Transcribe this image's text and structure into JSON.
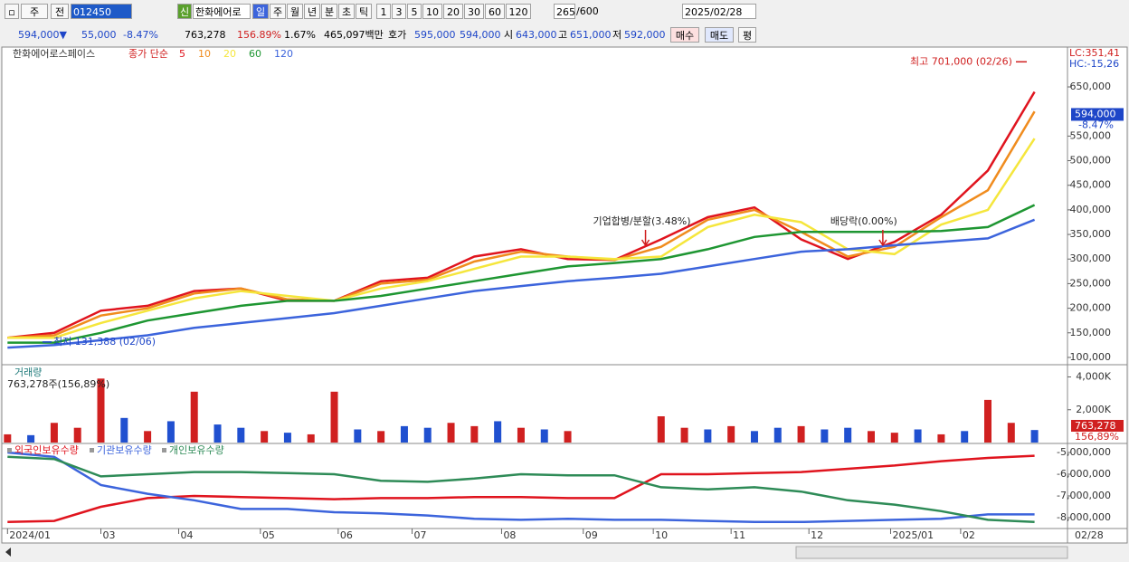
{
  "toolbar": {
    "period_unit": "주",
    "mode": "전",
    "code": "012450",
    "badge": "신",
    "name": "한화에어로",
    "intervals": [
      "일",
      "주",
      "월",
      "년",
      "분",
      "초",
      "틱"
    ],
    "minutes": [
      "1",
      "3",
      "5",
      "10",
      "20",
      "30",
      "60",
      "120"
    ],
    "count": "265",
    "max_count": "/600",
    "date": "2025/02/28"
  },
  "quote": {
    "price": "594,000▼",
    "change": "55,000",
    "change_pct": "-8.47%",
    "volume": "763,278",
    "volume_ratio": "156.89%",
    "turnover": "1.67%",
    "amount": "465,097백만",
    "ask_label": "호가",
    "ask": "595,000",
    "bid": "594,000",
    "open_label": "시",
    "open": "643,000",
    "high_label": "고",
    "high": "651,000",
    "low_label": "저",
    "low": "592,000",
    "buy": "매수",
    "sell": "매도",
    "avg": "평"
  },
  "chart_data": [
    {
      "type": "line",
      "name": "한화에어로스페이스",
      "indicator": "종가 단순",
      "x": [
        0,
        12,
        24,
        36,
        48,
        60,
        72,
        84,
        96,
        108,
        120,
        132,
        144,
        156,
        168,
        180,
        192,
        204,
        216,
        228,
        240,
        252,
        264
      ],
      "xlim": [
        -1,
        272
      ],
      "ylim": [
        87000,
        731000
      ],
      "yticks": [
        {
          "value": 100000,
          "label": "100,000"
        },
        {
          "value": 150000,
          "label": "150,000"
        },
        {
          "value": 200000,
          "label": "200,000"
        },
        {
          "value": 250000,
          "label": "250,000"
        },
        {
          "value": 300000,
          "label": "300,000"
        },
        {
          "value": 350000,
          "label": "350,000"
        },
        {
          "value": 400000,
          "label": "400,000"
        },
        {
          "value": 450000,
          "label": "450,000"
        },
        {
          "value": 500000,
          "label": "500,000"
        },
        {
          "value": 550000,
          "label": "550,000"
        },
        {
          "value": 650000,
          "label": "650,000"
        }
      ],
      "series": [
        {
          "name": "5",
          "color": "#e0141e",
          "values": [
            140000,
            150000,
            195000,
            205000,
            235000,
            240000,
            215000,
            215000,
            255000,
            262000,
            305000,
            320000,
            300000,
            298000,
            340000,
            385000,
            405000,
            340000,
            300000,
            335000,
            390000,
            480000,
            640000
          ]
        },
        {
          "name": "10",
          "color": "#f08c1e",
          "values": [
            140000,
            145000,
            185000,
            200000,
            230000,
            240000,
            218000,
            215000,
            250000,
            258000,
            295000,
            315000,
            305000,
            298000,
            325000,
            380000,
            400000,
            355000,
            305000,
            325000,
            385000,
            440000,
            600000
          ]
        },
        {
          "name": "20",
          "color": "#f5e63c",
          "values": [
            140000,
            140000,
            170000,
            195000,
            220000,
            235000,
            225000,
            215000,
            240000,
            255000,
            280000,
            305000,
            305000,
            300000,
            305000,
            365000,
            390000,
            375000,
            320000,
            310000,
            370000,
            400000,
            545000
          ]
        },
        {
          "name": "60",
          "color": "#1e9632",
          "values": [
            130000,
            130000,
            150000,
            175000,
            190000,
            205000,
            215000,
            215000,
            225000,
            240000,
            255000,
            270000,
            285000,
            292000,
            300000,
            320000,
            345000,
            355000,
            355000,
            355000,
            357000,
            365000,
            410000
          ]
        },
        {
          "name": "120",
          "color": "#3c64dc",
          "values": [
            120000,
            125000,
            135000,
            145000,
            160000,
            170000,
            180000,
            190000,
            205000,
            220000,
            235000,
            245000,
            255000,
            262000,
            270000,
            285000,
            300000,
            315000,
            320000,
            328000,
            335000,
            342000,
            380000
          ]
        }
      ],
      "last_value": 594000,
      "last_label": "594,000",
      "last_change": "-8.47%",
      "lc": "LC:351,41",
      "hc": "HC:-15,26",
      "annotations": [
        {
          "text": "최고 701,000 (02/26)",
          "x": 262,
          "value": 701000
        },
        {
          "text": "최저 131,388 (02/06)",
          "x": 9,
          "value": 131388
        }
      ],
      "events": [
        {
          "text": "기업합병/분할(3.48%)",
          "x": 164
        },
        {
          "text": "배당락(0.00%)",
          "x": 225
        }
      ]
    },
    {
      "type": "bar",
      "title": "거래량",
      "subtitle": "763,278주(156,89%)",
      "x": [
        0,
        6,
        12,
        18,
        24,
        30,
        36,
        42,
        48,
        54,
        60,
        66,
        72,
        78,
        84,
        90,
        96,
        102,
        108,
        114,
        120,
        126,
        132,
        138,
        144,
        150,
        156,
        162,
        168,
        174,
        180,
        186,
        192,
        198,
        204,
        210,
        216,
        222,
        228,
        234,
        240,
        246,
        252,
        258,
        264
      ],
      "xlim": [
        -1,
        272
      ],
      "ylim": [
        0,
        4690
      ],
      "yticks": [
        {
          "value": 2000,
          "label": "2,000K"
        },
        {
          "value": 4000,
          "label": "4,000K"
        }
      ],
      "values": [
        500,
        450,
        1200,
        900,
        3900,
        1500,
        700,
        1300,
        3100,
        1100,
        900,
        700,
        600,
        500,
        3100,
        800,
        700,
        1000,
        900,
        1200,
        1000,
        1300,
        900,
        800,
        700,
        null,
        null,
        null,
        1600,
        900,
        800,
        1000,
        700,
        900,
        1000,
        800,
        900,
        700,
        600,
        800,
        500,
        700,
        2600,
        1200,
        763.278
      ],
      "colors": [
        "#d02020",
        "#2050d0",
        "#d02020",
        "#d02020",
        "#d02020",
        "#2050d0",
        "#d02020",
        "#2050d0",
        "#d02020",
        "#2050d0",
        "#2050d0",
        "#d02020",
        "#2050d0",
        "#d02020",
        "#d02020",
        "#2050d0",
        "#d02020",
        "#2050d0",
        "#2050d0",
        "#d02020",
        "#d02020",
        "#2050d0",
        "#d02020",
        "#2050d0",
        "#d02020",
        "#d02020",
        "#d02020",
        "#d02020",
        "#d02020",
        "#d02020",
        "#2050d0",
        "#d02020",
        "#2050d0",
        "#2050d0",
        "#d02020",
        "#2050d0",
        "#2050d0",
        "#d02020",
        "#d02020",
        "#2050d0",
        "#d02020",
        "#2050d0",
        "#d02020",
        "#d02020",
        "#2050d0"
      ],
      "last_label": "763,278",
      "last_pct": "156,89%"
    },
    {
      "type": "line",
      "x": [
        0,
        12,
        24,
        36,
        48,
        60,
        72,
        84,
        96,
        108,
        120,
        132,
        144,
        156,
        168,
        180,
        192,
        204,
        216,
        228,
        240,
        252,
        264
      ],
      "xlim": [
        -1,
        272
      ],
      "ylim": [
        -8500000,
        -4625000
      ],
      "yticks": [
        {
          "value": -5000000,
          "label": "-5,000,000"
        },
        {
          "value": -6000000,
          "label": "-6,000,000"
        },
        {
          "value": -7000000,
          "label": "-7,000,000"
        },
        {
          "value": -8000000,
          "label": "-8,000,000"
        }
      ],
      "series": [
        {
          "name": "외국인보유수량",
          "color": "#e0141e",
          "values": [
            -8200000,
            -8150000,
            -7500000,
            -7100000,
            -7000000,
            -7050000,
            -7100000,
            -7150000,
            -7100000,
            -7100000,
            -7050000,
            -7050000,
            -7100000,
            -7100000,
            -6000000,
            -6000000,
            -5950000,
            -5900000,
            -5750000,
            -5600000,
            -5400000,
            -5250000,
            -5150000
          ]
        },
        {
          "name": "기관보유수량",
          "color": "#3c64dc",
          "values": [
            -5000000,
            -5200000,
            -6500000,
            -6900000,
            -7200000,
            -7600000,
            -7600000,
            -7750000,
            -7800000,
            -7900000,
            -8050000,
            -8100000,
            -8050000,
            -8100000,
            -8100000,
            -8150000,
            -8200000,
            -8200000,
            -8150000,
            -8100000,
            -8050000,
            -7850000,
            -7850000
          ]
        },
        {
          "name": "개인보유수량",
          "color": "#2e8b57",
          "values": [
            -5200000,
            -5300000,
            -6100000,
            -6000000,
            -5900000,
            -5900000,
            -5950000,
            -6000000,
            -6300000,
            -6350000,
            -6200000,
            -6000000,
            -6050000,
            -6050000,
            -6600000,
            -6700000,
            -6600000,
            -6800000,
            -7200000,
            -7400000,
            -7700000,
            -8100000,
            -8200000
          ]
        }
      ],
      "xticks": [
        {
          "value": 0,
          "label": "2024/01"
        },
        {
          "value": 24,
          "label": "03"
        },
        {
          "value": 44,
          "label": "04"
        },
        {
          "value": 65,
          "label": "05"
        },
        {
          "value": 85,
          "label": "06"
        },
        {
          "value": 104,
          "label": "07"
        },
        {
          "value": 127,
          "label": "08"
        },
        {
          "value": 148,
          "label": "09"
        },
        {
          "value": 166,
          "label": "10"
        },
        {
          "value": 186,
          "label": "11"
        },
        {
          "value": 206,
          "label": "12"
        },
        {
          "value": 227,
          "label": "2025/01"
        },
        {
          "value": 245,
          "label": "02"
        }
      ],
      "x_end_label": "02/28"
    }
  ]
}
